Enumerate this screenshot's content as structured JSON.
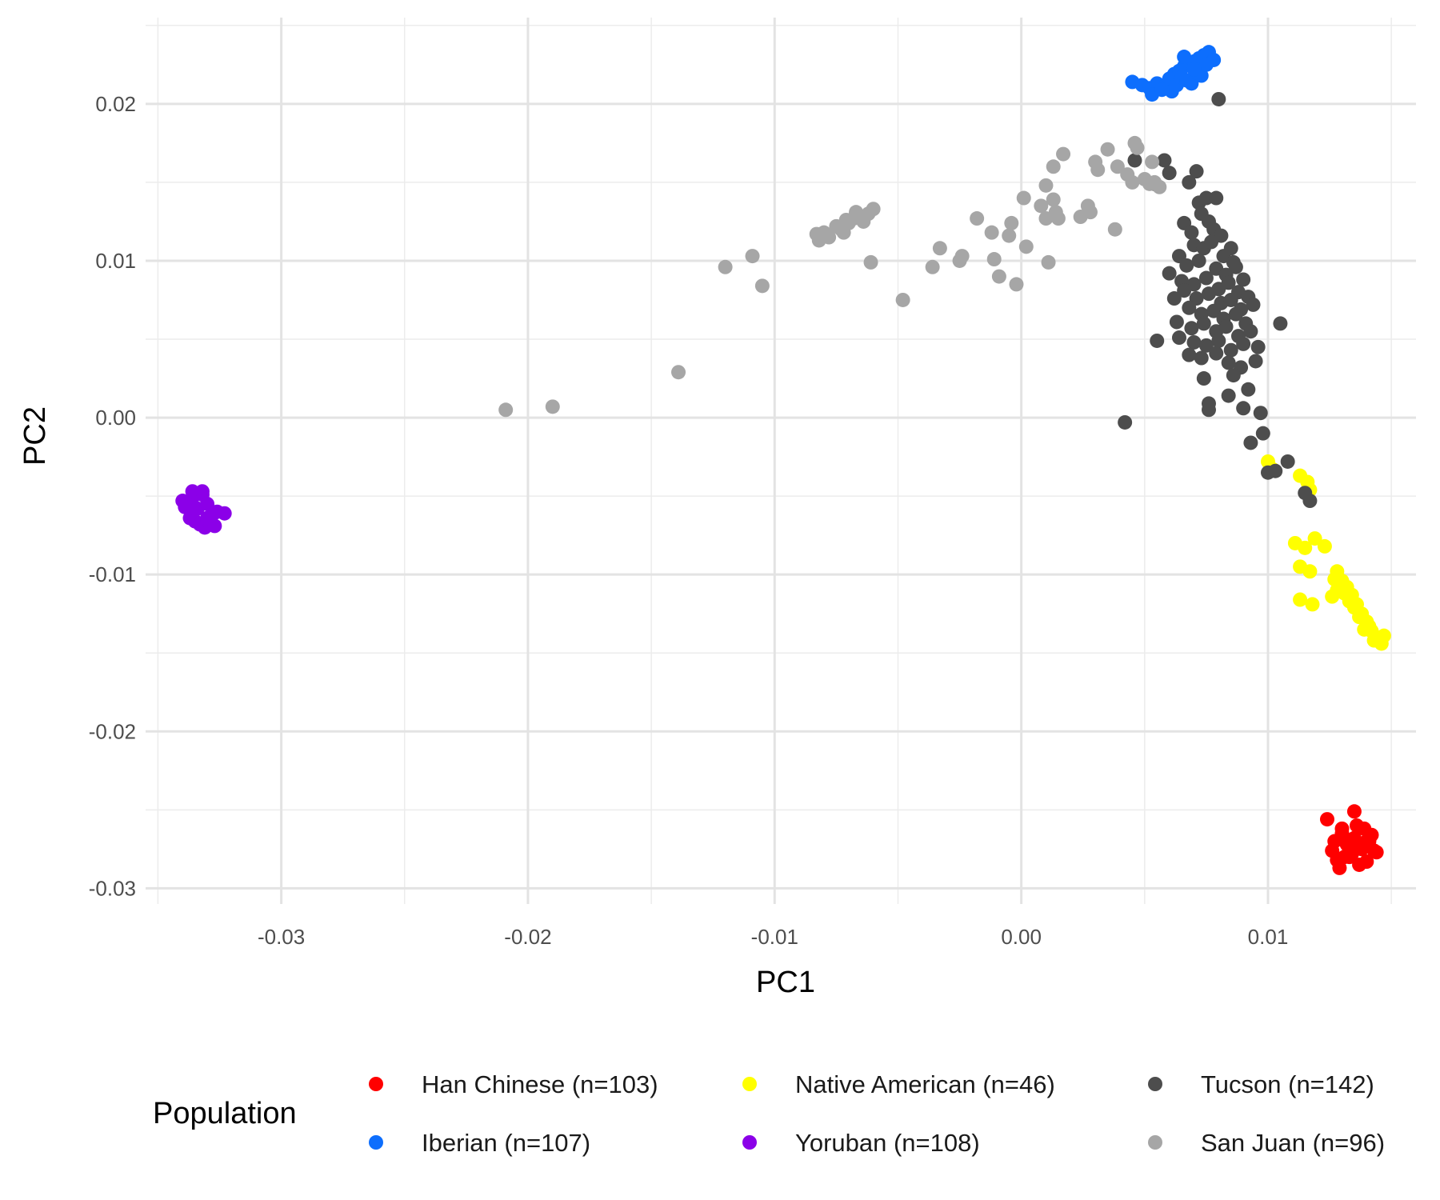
{
  "chart_data": {
    "type": "scatter",
    "xlabel": "PC1",
    "ylabel": "PC2",
    "xlim": [
      -0.0355,
      0.016
    ],
    "ylim": [
      -0.031,
      0.0255
    ],
    "x_ticks": [
      -0.03,
      -0.02,
      -0.01,
      0.0,
      0.01
    ],
    "x_tick_labels": [
      "-0.03",
      "-0.02",
      "-0.01",
      "0.00",
      "0.01"
    ],
    "y_ticks": [
      -0.03,
      -0.02,
      -0.01,
      0.0,
      0.01,
      0.02
    ],
    "y_tick_labels": [
      "-0.03",
      "-0.02",
      "-0.01",
      "0.00",
      "0.01",
      "0.02"
    ],
    "grid": true,
    "legend_title": "Population",
    "legend_position": "bottom",
    "series": [
      {
        "name": "Han Chinese (n=103)",
        "color": "#ff0000",
        "x": [
          0.0127,
          0.013,
          0.0133,
          0.0135,
          0.0137,
          0.0139,
          0.0141,
          0.0143,
          0.0128,
          0.0131,
          0.0134,
          0.0136,
          0.0138,
          0.014,
          0.0142,
          0.0132,
          0.0129,
          0.0124,
          0.0135,
          0.0137,
          0.013,
          0.0133,
          0.014,
          0.0126,
          0.0144
        ],
        "y": [
          -0.027,
          -0.0265,
          -0.0275,
          -0.0268,
          -0.0272,
          -0.0262,
          -0.027,
          -0.0276,
          -0.0282,
          -0.028,
          -0.0278,
          -0.026,
          -0.0275,
          -0.0283,
          -0.0266,
          -0.0272,
          -0.0287,
          -0.0256,
          -0.0251,
          -0.0285,
          -0.0262,
          -0.028,
          -0.027,
          -0.0276,
          -0.0277
        ]
      },
      {
        "name": "Iberian (n=107)",
        "color": "#0d6efd",
        "x": [
          0.0045,
          0.0049,
          0.0052,
          0.0055,
          0.0058,
          0.006,
          0.0062,
          0.0064,
          0.0066,
          0.0068,
          0.007,
          0.0072,
          0.0074,
          0.0076,
          0.0078,
          0.0061,
          0.0063,
          0.0065,
          0.0067,
          0.0069,
          0.0071,
          0.0073,
          0.0075,
          0.0053,
          0.0057,
          0.007,
          0.0066
        ],
        "y": [
          0.0214,
          0.0212,
          0.021,
          0.0213,
          0.0211,
          0.0216,
          0.0219,
          0.0221,
          0.0224,
          0.0226,
          0.0227,
          0.0229,
          0.0231,
          0.0233,
          0.0228,
          0.0208,
          0.0212,
          0.0217,
          0.0215,
          0.0213,
          0.022,
          0.0218,
          0.0225,
          0.0206,
          0.0209,
          0.0222,
          0.023
        ]
      },
      {
        "name": "Native American (n=46)",
        "color": "#ffff00",
        "x": [
          0.01,
          0.0102,
          0.0113,
          0.0116,
          0.0117,
          0.0111,
          0.0115,
          0.0119,
          0.0123,
          0.0113,
          0.0117,
          0.0113,
          0.0118,
          0.0126,
          0.0128,
          0.013,
          0.0132,
          0.0134,
          0.0136,
          0.0138,
          0.014,
          0.0142,
          0.0144,
          0.0146,
          0.0128,
          0.0133,
          0.0137,
          0.0141,
          0.0143,
          0.0139,
          0.0135,
          0.0131,
          0.0127,
          0.0147
        ],
        "y": [
          -0.0028,
          -0.0033,
          -0.0037,
          -0.0041,
          -0.0046,
          -0.008,
          -0.0083,
          -0.0077,
          -0.0082,
          -0.0095,
          -0.0098,
          -0.0116,
          -0.0119,
          -0.0114,
          -0.0098,
          -0.0104,
          -0.0108,
          -0.0113,
          -0.0119,
          -0.0125,
          -0.013,
          -0.0136,
          -0.014,
          -0.0144,
          -0.011,
          -0.0117,
          -0.0127,
          -0.0133,
          -0.0142,
          -0.0135,
          -0.0121,
          -0.0112,
          -0.0103,
          -0.0139
        ]
      },
      {
        "name": "Yoruban (n=108)",
        "color": "#8b00e8",
        "x": [
          -0.034,
          -0.0338,
          -0.0336,
          -0.0334,
          -0.0332,
          -0.033,
          -0.0328,
          -0.0326,
          -0.0337,
          -0.0335,
          -0.0333,
          -0.0331,
          -0.0329,
          -0.0327,
          -0.0323,
          -0.0336,
          -0.0332,
          -0.033,
          -0.0339
        ],
        "y": [
          -0.0053,
          -0.0056,
          -0.0051,
          -0.0058,
          -0.0049,
          -0.0055,
          -0.0062,
          -0.006,
          -0.0064,
          -0.0066,
          -0.0068,
          -0.007,
          -0.0067,
          -0.0069,
          -0.0061,
          -0.0047,
          -0.0047,
          -0.0064,
          -0.0057
        ]
      },
      {
        "name": "Tucson (n=142)",
        "color": "#4d4d4d",
        "x": [
          0.008,
          0.0046,
          0.0058,
          0.006,
          0.0054,
          0.0071,
          0.0068,
          0.0072,
          0.0075,
          0.0079,
          0.0073,
          0.0076,
          0.0066,
          0.0069,
          0.0078,
          0.0081,
          0.0085,
          0.007,
          0.0074,
          0.0077,
          0.0082,
          0.0086,
          0.0064,
          0.0067,
          0.0072,
          0.0079,
          0.0083,
          0.0087,
          0.009,
          0.006,
          0.0065,
          0.007,
          0.0075,
          0.008,
          0.0084,
          0.0088,
          0.0092,
          0.0066,
          0.0071,
          0.0076,
          0.0081,
          0.0085,
          0.0089,
          0.0094,
          0.0062,
          0.0068,
          0.0073,
          0.0078,
          0.0082,
          0.0087,
          0.0091,
          0.0063,
          0.0069,
          0.0074,
          0.0079,
          0.0083,
          0.0088,
          0.0093,
          0.0105,
          0.0055,
          0.0064,
          0.007,
          0.0075,
          0.008,
          0.0085,
          0.009,
          0.0096,
          0.0068,
          0.0073,
          0.0079,
          0.0084,
          0.0089,
          0.0095,
          0.0074,
          0.0086,
          0.0092,
          0.0076,
          0.0084,
          0.009,
          0.0097,
          0.0042,
          0.0076,
          0.0093,
          0.0098,
          0.01,
          0.0108,
          0.0115,
          0.0117,
          0.0103
        ],
        "y": [
          0.0203,
          0.0164,
          0.0164,
          0.0156,
          0.0149,
          0.0157,
          0.015,
          0.0137,
          0.014,
          0.014,
          0.013,
          0.0125,
          0.0124,
          0.0118,
          0.012,
          0.0116,
          0.0108,
          0.011,
          0.0108,
          0.0112,
          0.0103,
          0.0099,
          0.0103,
          0.0097,
          0.01,
          0.0095,
          0.0091,
          0.0096,
          0.0088,
          0.0092,
          0.0087,
          0.0085,
          0.0089,
          0.0082,
          0.0086,
          0.008,
          0.0077,
          0.0081,
          0.0076,
          0.0079,
          0.0073,
          0.0075,
          0.0069,
          0.0072,
          0.0076,
          0.007,
          0.0066,
          0.0068,
          0.0063,
          0.0066,
          0.006,
          0.0061,
          0.0057,
          0.006,
          0.0055,
          0.0058,
          0.0052,
          0.0055,
          0.006,
          0.0049,
          0.0051,
          0.0048,
          0.0046,
          0.0049,
          0.0043,
          0.0047,
          0.0045,
          0.004,
          0.0038,
          0.0041,
          0.0035,
          0.0032,
          0.0036,
          0.0025,
          0.0027,
          0.0018,
          0.0005,
          0.0014,
          0.0006,
          0.0003,
          -0.0003,
          0.0009,
          -0.0016,
          -0.001,
          -0.0035,
          -0.0028,
          -0.0048,
          -0.0053,
          -0.0034
        ]
      },
      {
        "name": "San Juan (n=96)",
        "color": "#a6a6a6",
        "x": [
          -0.0209,
          -0.019,
          -0.0139,
          -0.012,
          -0.0105,
          -0.0109,
          -0.0083,
          -0.0082,
          -0.008,
          -0.0078,
          -0.0075,
          -0.0072,
          -0.007,
          -0.0068,
          -0.0066,
          -0.0064,
          -0.0062,
          -0.006,
          -0.0073,
          -0.0071,
          -0.0067,
          -0.0061,
          -0.0048,
          -0.0036,
          -0.0033,
          -0.0025,
          -0.0024,
          -0.0018,
          -0.0012,
          -0.0011,
          -0.0009,
          -0.0005,
          -0.0004,
          -0.0002,
          0.0002,
          0.0001,
          0.0008,
          0.001,
          0.001,
          0.0011,
          0.0013,
          0.0014,
          0.0015,
          0.0017,
          0.0013,
          0.0024,
          0.0027,
          0.0028,
          0.003,
          0.0031,
          0.0035,
          0.0038,
          0.0043,
          0.0045,
          0.0046,
          0.0047,
          0.005,
          0.0052,
          0.0053,
          0.0054,
          0.0056,
          0.0039
        ],
        "y": [
          0.0005,
          0.0007,
          0.0029,
          0.0096,
          0.0084,
          0.0103,
          0.0117,
          0.0113,
          0.0118,
          0.0115,
          0.0122,
          0.0118,
          0.0124,
          0.0127,
          0.0128,
          0.0125,
          0.013,
          0.0133,
          0.012,
          0.0126,
          0.0131,
          0.0099,
          0.0075,
          0.0096,
          0.0108,
          0.01,
          0.0103,
          0.0127,
          0.0118,
          0.0101,
          0.009,
          0.0116,
          0.0124,
          0.0085,
          0.0109,
          0.014,
          0.0135,
          0.0148,
          0.0127,
          0.0099,
          0.0139,
          0.0131,
          0.0127,
          0.0168,
          0.016,
          0.0128,
          0.0135,
          0.0131,
          0.0163,
          0.0158,
          0.0171,
          0.012,
          0.0155,
          0.015,
          0.0175,
          0.0172,
          0.0152,
          0.0149,
          0.0163,
          0.015,
          0.0147,
          0.016
        ]
      }
    ]
  }
}
